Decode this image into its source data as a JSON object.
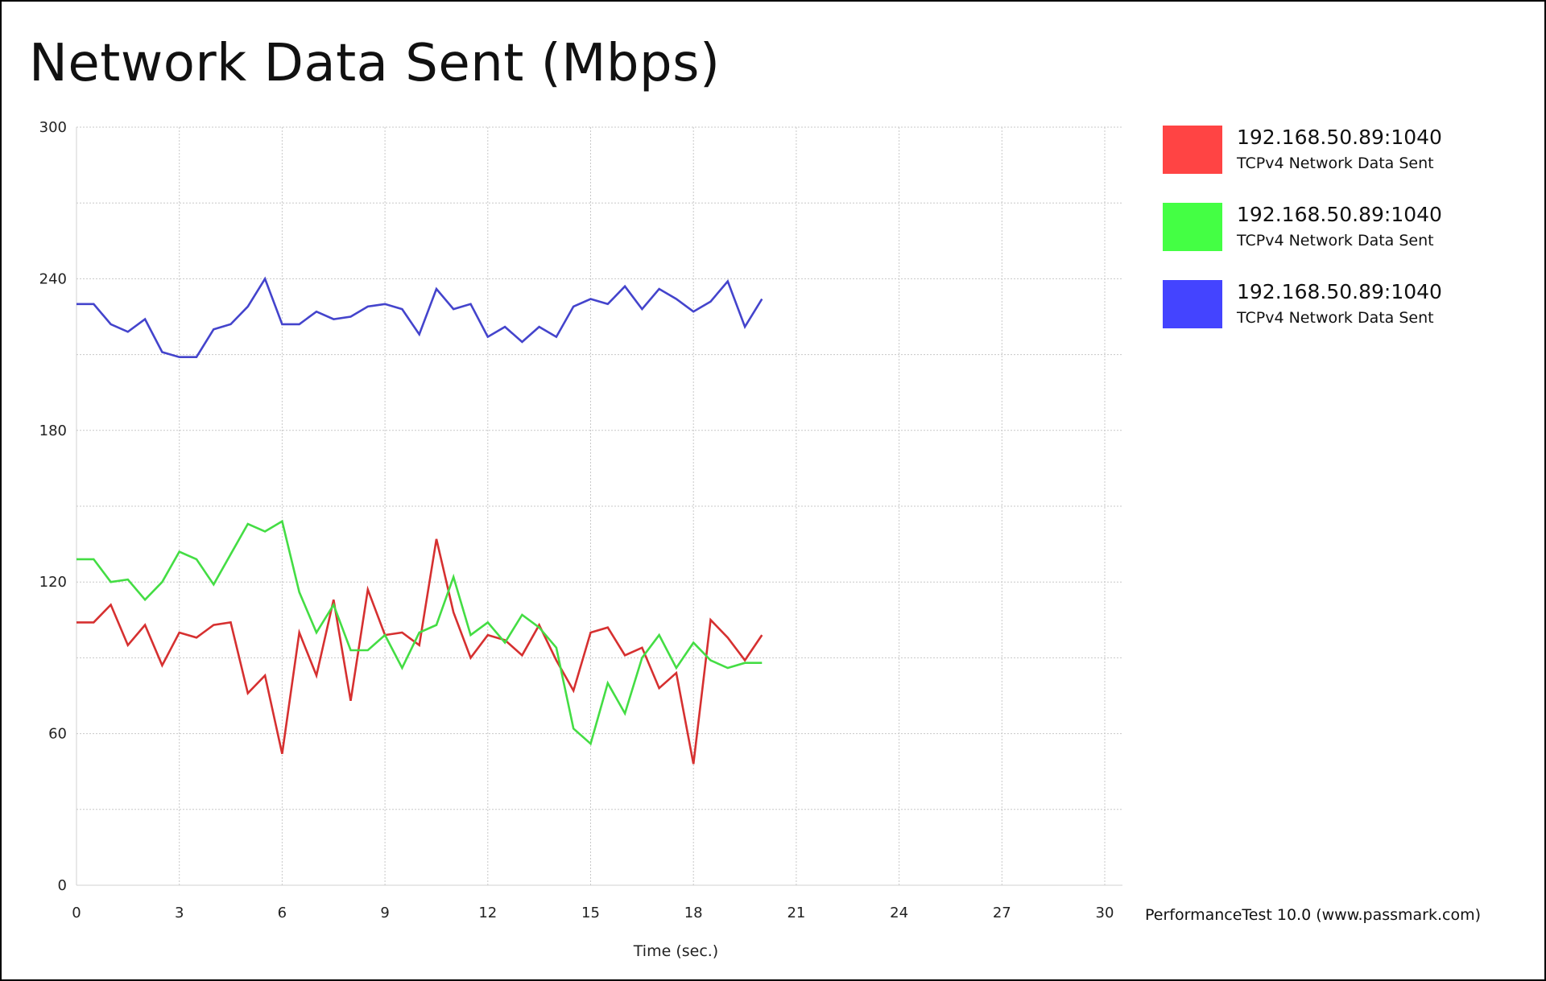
{
  "title": "Network Data Sent (Mbps)",
  "credit": "PerformanceTest 10.0 (www.passmark.com)",
  "chart_data": {
    "type": "line",
    "title": "Network Data Sent (Mbps)",
    "xlabel": "Time (sec.)",
    "ylabel": "",
    "xlim": [
      0,
      30
    ],
    "ylim": [
      0,
      300
    ],
    "xticks": [
      0,
      3,
      6,
      9,
      12,
      15,
      18,
      21,
      24,
      27,
      30
    ],
    "yticks": [
      0,
      60,
      120,
      180,
      240,
      300
    ],
    "grid": true,
    "legend_position": "right",
    "series": [
      {
        "name": "192.168.50.89:1040",
        "subtitle": "TCPv4 Network Data Sent",
        "color": "#ff4444",
        "line_color": "#d63030",
        "x": [
          0,
          0.5,
          1,
          1.5,
          2,
          2.5,
          3,
          3.5,
          4,
          4.5,
          5,
          5.5,
          6,
          6.5,
          7,
          7.5,
          8,
          8.5,
          9,
          9.5,
          10,
          10.5,
          11,
          11.5,
          12,
          12.5,
          13,
          13.5,
          14,
          14.5,
          15,
          15.5,
          16,
          16.5,
          17,
          17.5,
          18,
          18.5,
          19,
          19.5,
          20
        ],
        "y": [
          104,
          104,
          111,
          95,
          103,
          87,
          100,
          98,
          103,
          104,
          76,
          83,
          52,
          100,
          83,
          113,
          73,
          117,
          99,
          100,
          95,
          137,
          108,
          90,
          99,
          97,
          91,
          103,
          89,
          77,
          100,
          102,
          91,
          94,
          78,
          84,
          48,
          105,
          98,
          89,
          99
        ]
      },
      {
        "name": "192.168.50.89:1040",
        "subtitle": "TCPv4 Network Data Sent",
        "color": "#44ff44",
        "line_color": "#44dd44",
        "x": [
          0,
          0.5,
          1,
          1.5,
          2,
          2.5,
          3,
          3.5,
          4,
          4.5,
          5,
          5.5,
          6,
          6.5,
          7,
          7.5,
          8,
          8.5,
          9,
          9.5,
          10,
          10.5,
          11,
          11.5,
          12,
          12.5,
          13,
          13.5,
          14,
          14.5,
          15,
          15.5,
          16,
          16.5,
          17,
          17.5,
          18,
          18.5,
          19,
          19.5,
          20
        ],
        "y": [
          129,
          129,
          120,
          121,
          113,
          120,
          132,
          129,
          119,
          131,
          143,
          140,
          144,
          116,
          100,
          111,
          93,
          93,
          99,
          86,
          100,
          103,
          122,
          99,
          104,
          96,
          107,
          102,
          94,
          62,
          56,
          80,
          68,
          90,
          99,
          86,
          96,
          89,
          86,
          88,
          88
        ]
      },
      {
        "name": "192.168.50.89:1040",
        "subtitle": "TCPv4 Network Data Sent",
        "color": "#4444ff",
        "line_color": "#4444cc",
        "x": [
          0,
          0.5,
          1,
          1.5,
          2,
          2.5,
          3,
          3.5,
          4,
          4.5,
          5,
          5.5,
          6,
          6.5,
          7,
          7.5,
          8,
          8.5,
          9,
          9.5,
          10,
          10.5,
          11,
          11.5,
          12,
          12.5,
          13,
          13.5,
          14,
          14.5,
          15,
          15.5,
          16,
          16.5,
          17,
          17.5,
          18,
          18.5,
          19,
          19.5,
          20
        ],
        "y": [
          230,
          230,
          222,
          219,
          224,
          211,
          209,
          209,
          220,
          222,
          229,
          240,
          222,
          222,
          227,
          224,
          225,
          229,
          230,
          228,
          218,
          236,
          228,
          230,
          217,
          221,
          215,
          221,
          217,
          229,
          232,
          230,
          237,
          228,
          236,
          232,
          227,
          231,
          239,
          221,
          232
        ]
      }
    ]
  }
}
